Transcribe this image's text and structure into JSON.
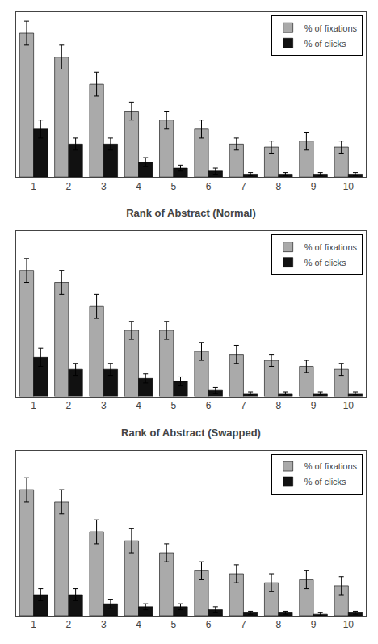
{
  "chart_data": [
    {
      "type": "bar",
      "xlabel": "Rank of Abstract (Normal)",
      "categories": [
        "1",
        "2",
        "3",
        "4",
        "5",
        "6",
        "7",
        "8",
        "9",
        "10"
      ],
      "series": [
        {
          "name": "% of fixations",
          "color": "#aaaaaa",
          "values": [
            0.48,
            0.4,
            0.31,
            0.22,
            0.19,
            0.16,
            0.11,
            0.1,
            0.12,
            0.1
          ],
          "error": [
            0.04,
            0.04,
            0.04,
            0.03,
            0.03,
            0.03,
            0.02,
            0.02,
            0.03,
            0.02
          ]
        },
        {
          "name": "% of clicks",
          "color": "#111111",
          "values": [
            0.16,
            0.11,
            0.11,
            0.05,
            0.03,
            0.02,
            0.01,
            0.01,
            0.01,
            0.01
          ],
          "error": [
            0.03,
            0.02,
            0.02,
            0.015,
            0.01,
            0.01,
            0.005,
            0.005,
            0.005,
            0.005
          ]
        }
      ],
      "ylim": [
        0,
        0.55
      ],
      "yticks": [],
      "tick_labels": "x",
      "grid": false,
      "legend": "upper right"
    },
    {
      "type": "bar",
      "xlabel": "Rank of Abstract (Swapped)",
      "categories": [
        "1",
        "2",
        "3",
        "4",
        "5",
        "6",
        "7",
        "8",
        "9",
        "10"
      ],
      "series": [
        {
          "name": "% of fixations",
          "color": "#aaaaaa",
          "values": [
            0.42,
            0.38,
            0.3,
            0.22,
            0.22,
            0.15,
            0.14,
            0.12,
            0.1,
            0.09
          ],
          "error": [
            0.04,
            0.04,
            0.04,
            0.03,
            0.03,
            0.03,
            0.03,
            0.02,
            0.02,
            0.02
          ]
        },
        {
          "name": "% of clicks",
          "color": "#111111",
          "values": [
            0.13,
            0.09,
            0.09,
            0.06,
            0.05,
            0.02,
            0.01,
            0.01,
            0.01,
            0.01
          ],
          "error": [
            0.03,
            0.02,
            0.02,
            0.015,
            0.015,
            0.01,
            0.005,
            0.005,
            0.005,
            0.005
          ]
        }
      ],
      "ylim": [
        0,
        0.55
      ],
      "yticks": [],
      "tick_labels": "x",
      "grid": false,
      "legend": "upper right"
    },
    {
      "type": "bar",
      "categories": [
        "1",
        "2",
        "3",
        "4",
        "5",
        "6",
        "7",
        "8",
        "9",
        "10"
      ],
      "series": [
        {
          "name": "% of fixations",
          "color": "#aaaaaa",
          "values": [
            0.42,
            0.38,
            0.28,
            0.25,
            0.21,
            0.15,
            0.14,
            0.11,
            0.12,
            0.1
          ],
          "error": [
            0.04,
            0.04,
            0.04,
            0.04,
            0.03,
            0.03,
            0.03,
            0.03,
            0.03,
            0.03
          ]
        },
        {
          "name": "% of clicks",
          "color": "#111111",
          "values": [
            0.07,
            0.07,
            0.04,
            0.03,
            0.03,
            0.02,
            0.01,
            0.01,
            0.005,
            0.01
          ],
          "error": [
            0.02,
            0.02,
            0.015,
            0.01,
            0.01,
            0.01,
            0.005,
            0.005,
            0.005,
            0.005
          ]
        }
      ],
      "ylim": [
        0,
        0.55
      ],
      "yticks": [],
      "tick_labels": "x",
      "grid": false,
      "legend": "upper right"
    }
  ]
}
